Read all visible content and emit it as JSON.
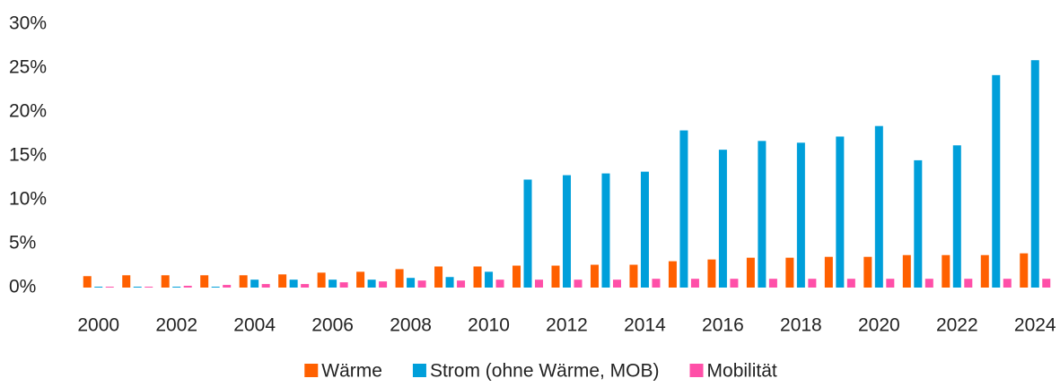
{
  "chart_data": {
    "type": "bar",
    "categories": [
      "2000",
      null,
      "2002",
      null,
      "2004",
      null,
      "2006",
      null,
      "2008",
      null,
      "2010",
      null,
      "2012",
      null,
      "2014",
      null,
      "2016",
      null,
      "2018",
      null,
      "2020",
      null,
      "2022",
      null,
      "2024"
    ],
    "series": [
      {
        "name": "Wärme",
        "color": "#ff6000",
        "values": [
          1.3,
          1.4,
          1.4,
          1.4,
          1.4,
          1.5,
          1.7,
          1.8,
          2.1,
          2.4,
          2.4,
          2.5,
          2.5,
          2.6,
          2.6,
          3.0,
          3.2,
          3.4,
          3.4,
          3.5,
          3.5,
          3.7,
          3.7,
          3.7,
          3.9
        ]
      },
      {
        "name": "Strom (ohne Wärme, MOB)",
        "color": "#009fda",
        "values": [
          0.1,
          0.1,
          0.1,
          0.1,
          0.9,
          0.9,
          0.9,
          0.9,
          1.1,
          1.2,
          1.8,
          12.3,
          12.8,
          13.0,
          13.2,
          17.9,
          15.7,
          16.7,
          16.5,
          17.2,
          18.4,
          14.5,
          16.2,
          24.2,
          25.9
        ]
      },
      {
        "name": "Mobilität",
        "color": "#ff4fa8",
        "values": [
          0.1,
          0.1,
          0.2,
          0.3,
          0.4,
          0.4,
          0.6,
          0.7,
          0.8,
          0.8,
          0.9,
          0.9,
          0.9,
          0.9,
          1.0,
          1.0,
          1.0,
          1.0,
          1.0,
          1.0,
          1.0,
          1.0,
          1.0,
          1.0,
          1.0
        ]
      }
    ],
    "ylim": [
      0,
      30
    ],
    "yticks": [
      {
        "value": 0,
        "label": "0%"
      },
      {
        "value": 5,
        "label": "5%"
      },
      {
        "value": 10,
        "label": "10%"
      },
      {
        "value": 15,
        "label": "15%"
      },
      {
        "value": 20,
        "label": "20%"
      },
      {
        "value": 25,
        "label": "25%"
      },
      {
        "value": 30,
        "label": "30%"
      }
    ],
    "legend": "bottom"
  }
}
